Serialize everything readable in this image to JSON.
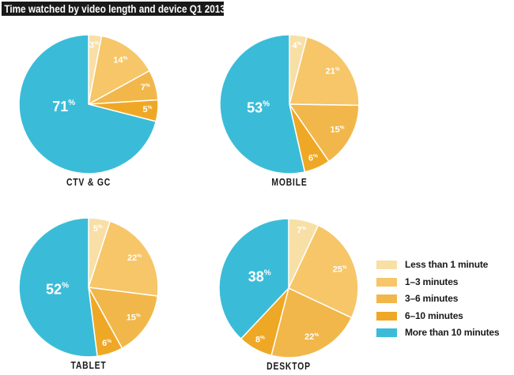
{
  "title": "Time watched by video length and device Q1 2013",
  "legend": {
    "position": "bottom-right",
    "items": [
      {
        "label": "Less than 1 minute",
        "color": "#F8DFA6"
      },
      {
        "label": "1–3 minutes",
        "color": "#F6C669"
      },
      {
        "label": "3–6 minutes",
        "color": "#F2B74A"
      },
      {
        "label": "6–10 minutes",
        "color": "#EFA825"
      },
      {
        "label": "More than 10 minutes",
        "color": "#3ABCD8"
      }
    ]
  },
  "chart_data": [
    {
      "type": "pie",
      "device": "CTV & GC",
      "categories": [
        "Less than 1 minute",
        "1–3 minutes",
        "3–6 minutes",
        "6–10 minutes",
        "More than 10 minutes"
      ],
      "values": [
        3,
        14,
        7,
        5,
        71
      ],
      "unit": "%",
      "start_angle": "12 o'clock",
      "direction": "clockwise"
    },
    {
      "type": "pie",
      "device": "MOBILE",
      "categories": [
        "Less than 1 minute",
        "1–3 minutes",
        "3–6 minutes",
        "6–10 minutes",
        "More than 10 minutes"
      ],
      "values": [
        4,
        21,
        15,
        6,
        53
      ],
      "unit": "%",
      "start_angle": "12 o'clock",
      "direction": "clockwise"
    },
    {
      "type": "pie",
      "device": "TABLET",
      "categories": [
        "Less than 1 minute",
        "1–3 minutes",
        "3–6 minutes",
        "6–10 minutes",
        "More than 10 minutes"
      ],
      "values": [
        5,
        22,
        15,
        6,
        52
      ],
      "unit": "%",
      "start_angle": "12 o'clock",
      "direction": "clockwise"
    },
    {
      "type": "pie",
      "device": "DESKTOP",
      "categories": [
        "Less than 1 minute",
        "1–3 minutes",
        "3–6 minutes",
        "6–10 minutes",
        "More than 10 minutes"
      ],
      "values": [
        7,
        25,
        22,
        8,
        38
      ],
      "unit": "%",
      "start_angle": "12 o'clock",
      "direction": "clockwise"
    }
  ]
}
